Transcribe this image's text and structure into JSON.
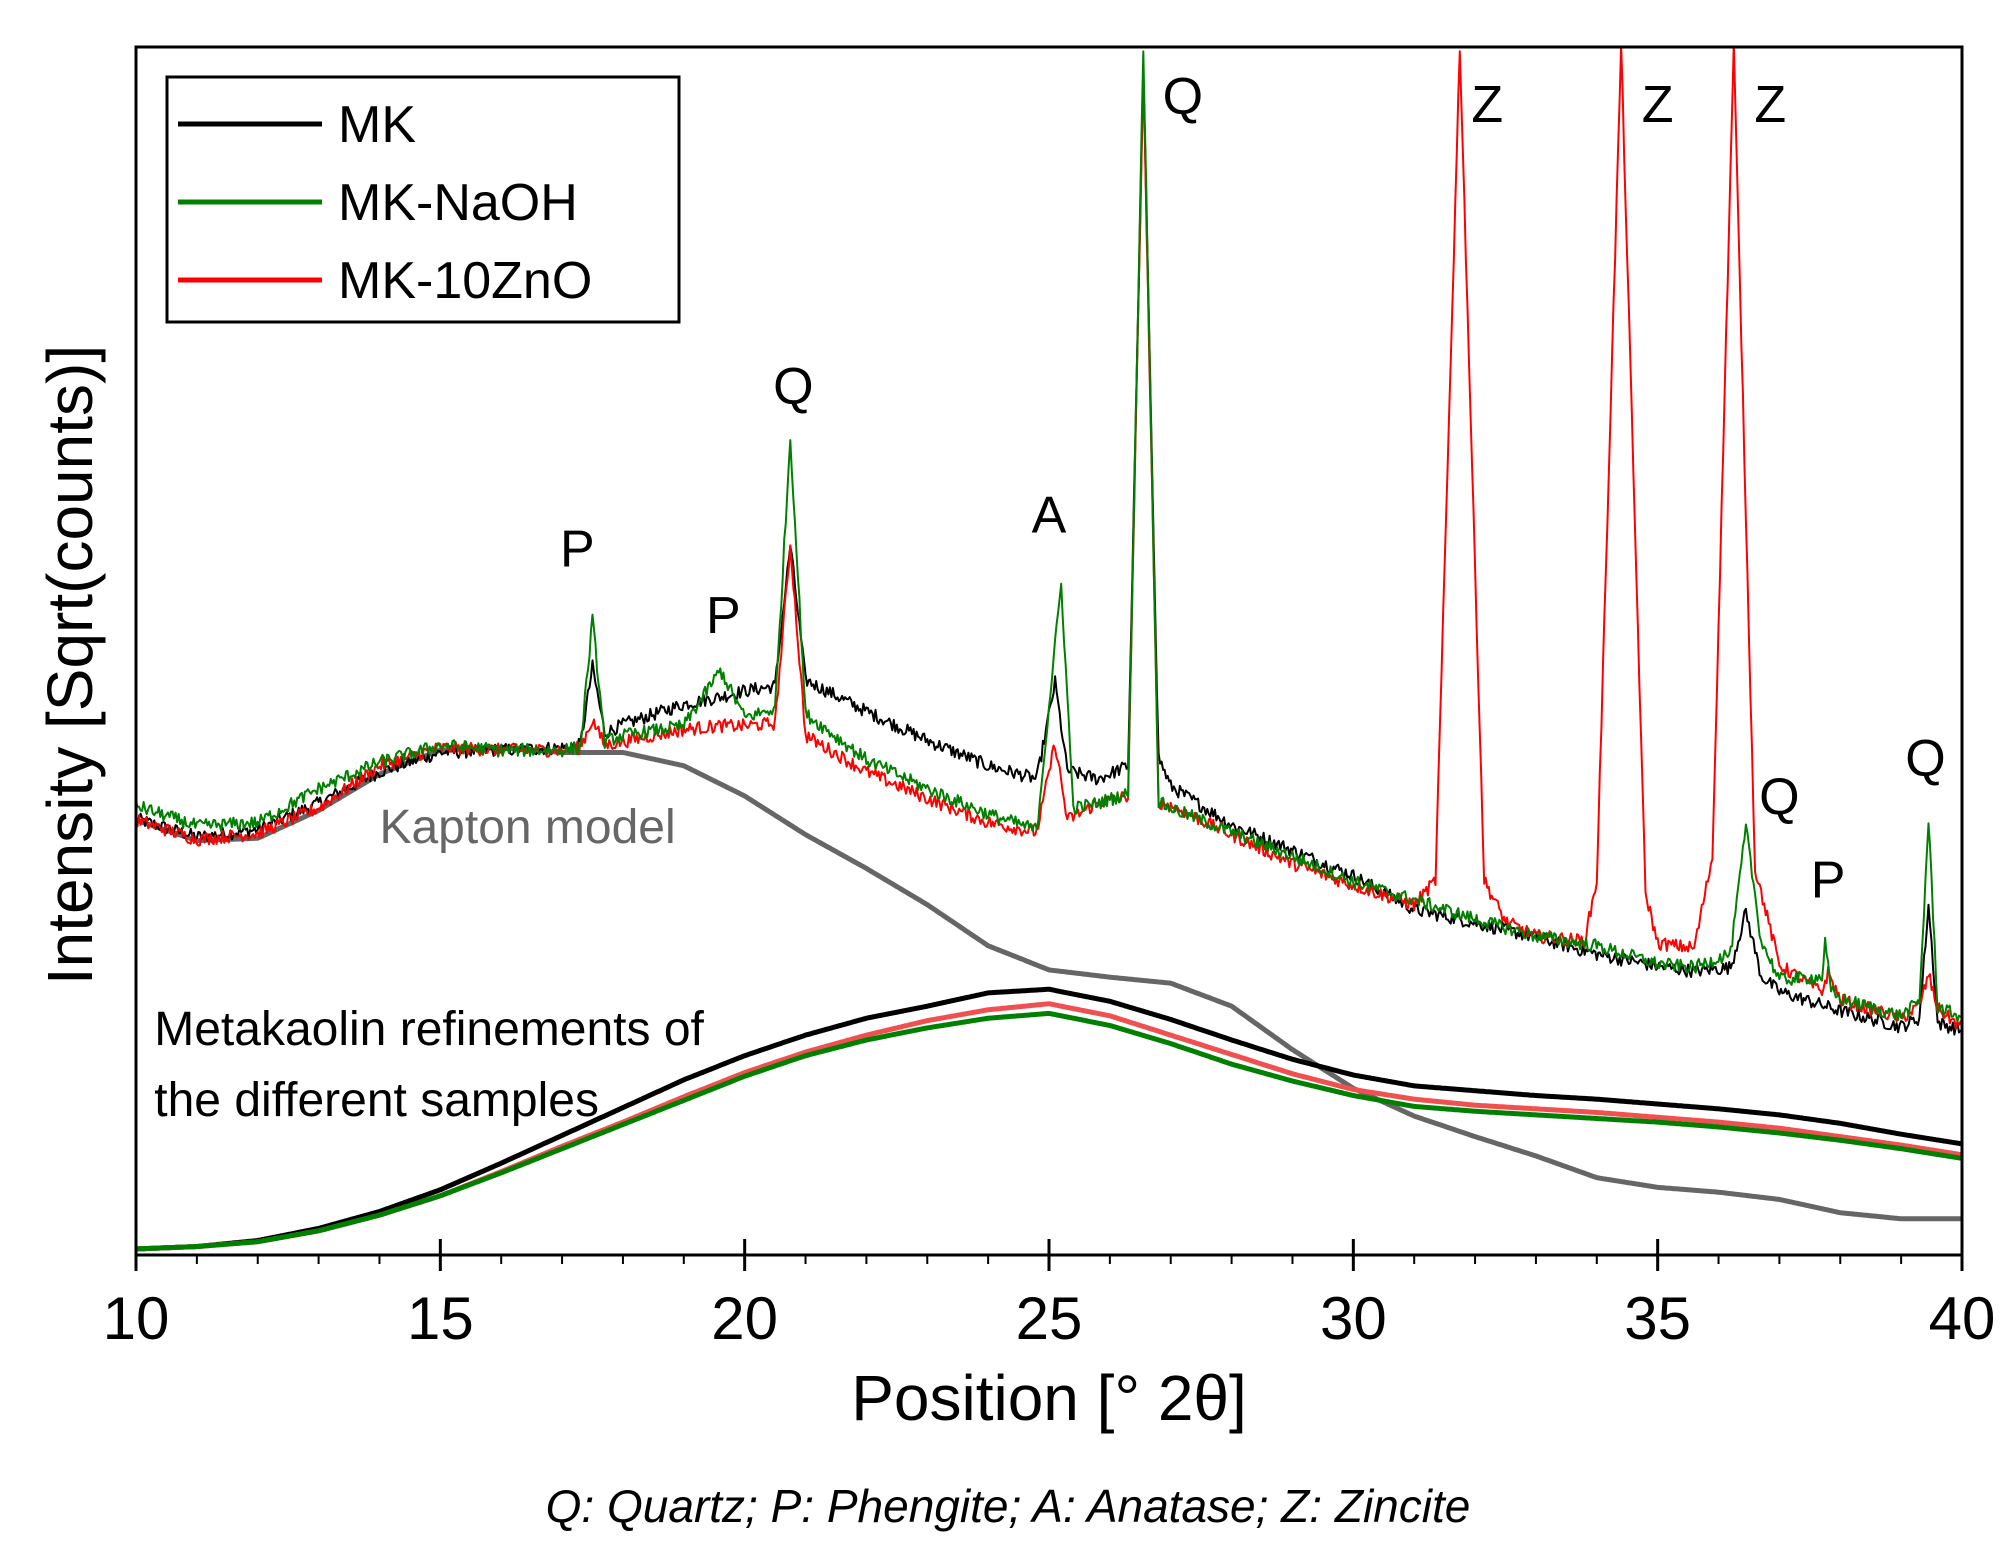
{
  "chart_data": {
    "type": "line",
    "title": "",
    "xlabel": "Position [° 2θ]",
    "ylabel": "Intensity [Sqrt(counts)]",
    "xlim": [
      10,
      40
    ],
    "ylim": [
      0,
      100
    ],
    "x_ticks": [
      10,
      15,
      20,
      25,
      30,
      35,
      40
    ],
    "x_tick_labels": [
      "10",
      "15",
      "20",
      "25",
      "30",
      "35",
      "40"
    ],
    "y_ticks_shown": false,
    "grid": false,
    "legend": {
      "position": "top-left",
      "entries": [
        "MK",
        "MK-NaOH",
        "MK-10ZnO"
      ]
    },
    "colors": {
      "MK": "#000000",
      "MK-NaOH": "#008000",
      "MK-10ZnO": "#ff0000",
      "Kapton model": "#666666"
    },
    "series": [
      {
        "name": "MK",
        "points": [
          [
            10,
            36.1
          ],
          [
            11,
            34.6
          ],
          [
            12,
            35.2
          ],
          [
            13,
            37.4
          ],
          [
            14,
            40.0
          ],
          [
            15,
            41.6
          ],
          [
            16,
            41.8
          ],
          [
            17,
            42.0
          ],
          [
            17.3,
            42.2
          ],
          [
            17.5,
            48.7
          ],
          [
            17.7,
            43.2
          ],
          [
            18,
            43.9
          ],
          [
            19,
            45.6
          ],
          [
            19.6,
            46.2
          ],
          [
            20,
            46.7
          ],
          [
            20.5,
            47.1
          ],
          [
            20.75,
            58.8
          ],
          [
            21,
            47.6
          ],
          [
            22,
            45.0
          ],
          [
            23,
            42.6
          ],
          [
            24,
            40.5
          ],
          [
            24.8,
            39.4
          ],
          [
            25.1,
            47.4
          ],
          [
            25.3,
            40.1
          ],
          [
            25.8,
            39.4
          ],
          [
            26.3,
            40.5
          ],
          [
            26.55,
            97.8
          ],
          [
            26.8,
            41.2
          ],
          [
            27,
            38.8
          ],
          [
            28,
            35.6
          ],
          [
            29,
            33.5
          ],
          [
            30,
            31.4
          ],
          [
            31,
            28.6
          ],
          [
            32,
            27.5
          ],
          [
            33,
            26.3
          ],
          [
            34,
            24.9
          ],
          [
            35,
            23.9
          ],
          [
            35.6,
            23.5
          ],
          [
            36.2,
            23.8
          ],
          [
            36.45,
            28.4
          ],
          [
            36.7,
            23.1
          ],
          [
            37,
            21.8
          ],
          [
            38,
            20.2
          ],
          [
            39,
            18.9
          ],
          [
            39.3,
            19.6
          ],
          [
            39.45,
            29.0
          ],
          [
            39.6,
            19.2
          ],
          [
            40,
            18.6
          ]
        ]
      },
      {
        "name": "MK-NaOH",
        "points": [
          [
            10,
            37.2
          ],
          [
            11,
            35.5
          ],
          [
            12,
            35.8
          ],
          [
            13,
            38.6
          ],
          [
            14,
            40.8
          ],
          [
            15,
            42.2
          ],
          [
            16,
            41.8
          ],
          [
            17,
            41.8
          ],
          [
            17.3,
            42.0
          ],
          [
            17.5,
            52.6
          ],
          [
            17.7,
            42.5
          ],
          [
            18,
            43.0
          ],
          [
            19,
            43.8
          ],
          [
            19.6,
            48.4
          ],
          [
            20,
            44.5
          ],
          [
            20.5,
            45.2
          ],
          [
            20.75,
            67.7
          ],
          [
            21,
            44.8
          ],
          [
            22,
            41.0
          ],
          [
            23,
            38.6
          ],
          [
            24,
            36.5
          ],
          [
            24.8,
            35.2
          ],
          [
            25.2,
            55.6
          ],
          [
            25.4,
            37.0
          ],
          [
            25.8,
            37.4
          ],
          [
            26.3,
            38.2
          ],
          [
            26.55,
            100
          ],
          [
            26.8,
            37.5
          ],
          [
            27,
            37.0
          ],
          [
            28,
            35.0
          ],
          [
            29,
            33.0
          ],
          [
            30,
            30.9
          ],
          [
            31,
            29.4
          ],
          [
            32,
            27.8
          ],
          [
            33,
            26.4
          ],
          [
            34,
            25.6
          ],
          [
            35,
            24.1
          ],
          [
            35.6,
            23.8
          ],
          [
            36.2,
            25.0
          ],
          [
            36.45,
            35.4
          ],
          [
            36.7,
            26.0
          ],
          [
            37,
            22.8
          ],
          [
            37.7,
            23.0
          ],
          [
            37.75,
            25.8
          ],
          [
            37.85,
            21.8
          ],
          [
            38,
            21.2
          ],
          [
            39,
            19.8
          ],
          [
            39.3,
            21.0
          ],
          [
            39.45,
            36.0
          ],
          [
            39.6,
            20.5
          ],
          [
            40,
            19.7
          ]
        ]
      },
      {
        "name": "MK-10ZnO",
        "points": [
          [
            10,
            36.0
          ],
          [
            11,
            34.4
          ],
          [
            12,
            34.9
          ],
          [
            13,
            37.0
          ],
          [
            14,
            40.5
          ],
          [
            15,
            42.0
          ],
          [
            16,
            41.8
          ],
          [
            17,
            41.8
          ],
          [
            17.3,
            42.0
          ],
          [
            17.5,
            44.3
          ],
          [
            17.7,
            42.2
          ],
          [
            18,
            42.5
          ],
          [
            19,
            43.5
          ],
          [
            19.6,
            43.8
          ],
          [
            20,
            43.8
          ],
          [
            20.5,
            44.0
          ],
          [
            20.75,
            58.8
          ],
          [
            21,
            43.0
          ],
          [
            22,
            40.0
          ],
          [
            23,
            37.8
          ],
          [
            24,
            35.8
          ],
          [
            24.8,
            35.0
          ],
          [
            25.1,
            42.4
          ],
          [
            25.3,
            36.0
          ],
          [
            25.8,
            37.4
          ],
          [
            26.3,
            38.0
          ],
          [
            26.55,
            98.0
          ],
          [
            26.8,
            37.5
          ],
          [
            27,
            37.2
          ],
          [
            28,
            34.8
          ],
          [
            29,
            32.4
          ],
          [
            30,
            30.6
          ],
          [
            31,
            29.0
          ],
          [
            31.35,
            31.0
          ],
          [
            31.75,
            100
          ],
          [
            32.15,
            31.0
          ],
          [
            32.5,
            27.6
          ],
          [
            33,
            26.4
          ],
          [
            33.8,
            26.0
          ],
          [
            34.0,
            31.0
          ],
          [
            34.4,
            100
          ],
          [
            34.8,
            30.0
          ],
          [
            35,
            25.8
          ],
          [
            35.6,
            25.4
          ],
          [
            35.9,
            33.0
          ],
          [
            36.25,
            100
          ],
          [
            36.6,
            32.0
          ],
          [
            37,
            24.0
          ],
          [
            37.7,
            21.8
          ],
          [
            37.8,
            23.4
          ],
          [
            38,
            21.1
          ],
          [
            39,
            19.6
          ],
          [
            39.3,
            20.6
          ],
          [
            39.45,
            23.2
          ],
          [
            39.6,
            20.4
          ],
          [
            40,
            18.8
          ]
        ]
      },
      {
        "name": "Kapton model",
        "points": [
          [
            10,
            36.0
          ],
          [
            11,
            34.3
          ],
          [
            12,
            34.5
          ],
          [
            13,
            36.8
          ],
          [
            14,
            39.8
          ],
          [
            15,
            41.8
          ],
          [
            16,
            42.0
          ],
          [
            17,
            41.6
          ],
          [
            18,
            41.6
          ],
          [
            19,
            40.5
          ],
          [
            20,
            38.0
          ],
          [
            21,
            34.8
          ],
          [
            22,
            32.0
          ],
          [
            23,
            29.0
          ],
          [
            24,
            25.6
          ],
          [
            25,
            23.6
          ],
          [
            26,
            23.0
          ],
          [
            27,
            22.5
          ],
          [
            28,
            20.6
          ],
          [
            29,
            17.0
          ],
          [
            30,
            13.8
          ],
          [
            31,
            11.5
          ],
          [
            32,
            9.8
          ],
          [
            33,
            8.2
          ],
          [
            34,
            6.4
          ],
          [
            35,
            5.6
          ],
          [
            36,
            5.2
          ],
          [
            37,
            4.6
          ],
          [
            38,
            3.5
          ],
          [
            39,
            3.0
          ],
          [
            40,
            3.0
          ]
        ]
      },
      {
        "name": "Metakaolin refinement (MK)",
        "points": [
          [
            10,
            0.5
          ],
          [
            11,
            0.7
          ],
          [
            12,
            1.2
          ],
          [
            13,
            2.2
          ],
          [
            14,
            3.6
          ],
          [
            15,
            5.4
          ],
          [
            16,
            7.6
          ],
          [
            17,
            9.9
          ],
          [
            18,
            12.2
          ],
          [
            19,
            14.5
          ],
          [
            20,
            16.5
          ],
          [
            21,
            18.2
          ],
          [
            22,
            19.6
          ],
          [
            23,
            20.6
          ],
          [
            24,
            21.7
          ],
          [
            25,
            22.0
          ],
          [
            26,
            21.0
          ],
          [
            27,
            19.5
          ],
          [
            28,
            17.8
          ],
          [
            29,
            16.2
          ],
          [
            30,
            14.9
          ],
          [
            31,
            14.0
          ],
          [
            32,
            13.6
          ],
          [
            33,
            13.2
          ],
          [
            34,
            12.9
          ],
          [
            35,
            12.5
          ],
          [
            36,
            12.1
          ],
          [
            37,
            11.6
          ],
          [
            38,
            10.9
          ],
          [
            39,
            10.0
          ],
          [
            40,
            9.2
          ]
        ]
      },
      {
        "name": "Metakaolin refinement (MK-NaOH)",
        "points": [
          [
            10,
            0.5
          ],
          [
            11,
            0.7
          ],
          [
            12,
            1.1
          ],
          [
            13,
            2.0
          ],
          [
            14,
            3.3
          ],
          [
            15,
            4.9
          ],
          [
            16,
            6.8
          ],
          [
            17,
            8.8
          ],
          [
            18,
            10.8
          ],
          [
            19,
            12.8
          ],
          [
            20,
            14.8
          ],
          [
            21,
            16.5
          ],
          [
            22,
            17.8
          ],
          [
            23,
            18.8
          ],
          [
            24,
            19.6
          ],
          [
            25,
            20.0
          ],
          [
            26,
            19.0
          ],
          [
            27,
            17.5
          ],
          [
            28,
            15.8
          ],
          [
            29,
            14.4
          ],
          [
            30,
            13.2
          ],
          [
            31,
            12.3
          ],
          [
            32,
            11.9
          ],
          [
            33,
            11.6
          ],
          [
            34,
            11.3
          ],
          [
            35,
            11.0
          ],
          [
            36,
            10.6
          ],
          [
            37,
            10.1
          ],
          [
            38,
            9.5
          ],
          [
            39,
            8.8
          ],
          [
            40,
            8.0
          ]
        ]
      },
      {
        "name": "Metakaolin refinement (MK-10ZnO)",
        "points": [
          [
            10,
            0.5
          ],
          [
            11,
            0.7
          ],
          [
            12,
            1.1
          ],
          [
            13,
            2.0
          ],
          [
            14,
            3.3
          ],
          [
            15,
            4.9
          ],
          [
            16,
            6.9
          ],
          [
            17,
            9.0
          ],
          [
            18,
            11.0
          ],
          [
            19,
            13.1
          ],
          [
            20,
            15.1
          ],
          [
            21,
            16.8
          ],
          [
            22,
            18.2
          ],
          [
            23,
            19.4
          ],
          [
            24,
            20.3
          ],
          [
            25,
            20.8
          ],
          [
            26,
            19.8
          ],
          [
            27,
            18.2
          ],
          [
            28,
            16.6
          ],
          [
            29,
            15.0
          ],
          [
            30,
            13.7
          ],
          [
            31,
            12.9
          ],
          [
            32,
            12.4
          ],
          [
            33,
            12.1
          ],
          [
            34,
            11.8
          ],
          [
            35,
            11.4
          ],
          [
            36,
            11.0
          ],
          [
            37,
            10.5
          ],
          [
            38,
            9.8
          ],
          [
            39,
            9.1
          ],
          [
            40,
            8.3
          ]
        ]
      }
    ],
    "peak_labels": [
      {
        "text": "P",
        "x": 17.25,
        "y": 57
      },
      {
        "text": "P",
        "x": 19.65,
        "y": 51.5
      },
      {
        "text": "Q",
        "x": 20.8,
        "y": 70.5
      },
      {
        "text": "A",
        "x": 25.0,
        "y": 59.8
      },
      {
        "text": "Q",
        "x": 27.2,
        "y": 94.5
      },
      {
        "text": "Z",
        "x": 32.2,
        "y": 93.8
      },
      {
        "text": "Z",
        "x": 35.0,
        "y": 93.8
      },
      {
        "text": "Z",
        "x": 36.85,
        "y": 93.8
      },
      {
        "text": "Q",
        "x": 37.0,
        "y": 36.5
      },
      {
        "text": "P",
        "x": 37.8,
        "y": 29.6
      },
      {
        "text": "Q",
        "x": 39.4,
        "y": 39.7
      }
    ],
    "annotations": [
      {
        "text": "Kapton model",
        "x": 14.0,
        "y": 34.1
      },
      {
        "text": "Metakaolin refinements of",
        "x": 10.3,
        "y": 17.4
      },
      {
        "text": "the different samples",
        "x": 10.3,
        "y": 11.5
      }
    ],
    "footnote": "Q: Quartz; P: Phengite; A: Anatase; Z: Zincite"
  }
}
